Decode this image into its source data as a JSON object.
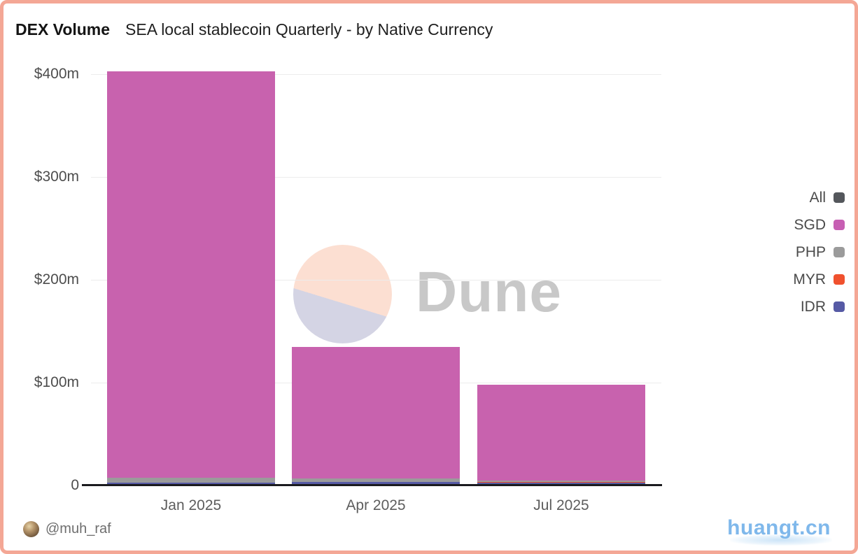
{
  "header": {
    "title": "DEX Volume",
    "subtitle": "SEA local stablecoin Quarterly - by Native Currency"
  },
  "footer": {
    "author_handle": "@muh_raf",
    "brand": "huangt.cn"
  },
  "watermark": {
    "text": "Dune",
    "circle_top_color": "#fcdfd2",
    "circle_bottom_color": "#d4d4e4"
  },
  "legend": {
    "position": "right",
    "items": [
      {
        "label": "All",
        "color": "#54575c"
      },
      {
        "label": "SGD",
        "color": "#c75fb3"
      },
      {
        "label": "PHP",
        "color": "#9b9b9b"
      },
      {
        "label": "MYR",
        "color": "#f0512e"
      },
      {
        "label": "IDR",
        "color": "#565aa5"
      }
    ]
  },
  "chart_data": {
    "type": "bar",
    "stacked": true,
    "title": "DEX Volume — SEA local stablecoin Quarterly - by Native Currency",
    "xlabel": "",
    "ylabel": "",
    "units": "$m (USD millions)",
    "categories": [
      "Jan 2025",
      "Apr 2025",
      "Jul 2025"
    ],
    "series": [
      {
        "name": "IDR",
        "color": "#565aa5",
        "values": [
          2.7,
          3.4,
          3.0
        ]
      },
      {
        "name": "MYR",
        "color": "#f0512e",
        "values": [
          0.3,
          0.3,
          0.7
        ]
      },
      {
        "name": "PHP",
        "color": "#9b9b9b",
        "values": [
          4.8,
          3.4,
          1.3
        ]
      },
      {
        "name": "SGD",
        "color": "#c862ae",
        "values": [
          395.0,
          127.9,
          93.0
        ]
      }
    ],
    "totals_approx": [
      403,
      135,
      98
    ],
    "y_ticks": [
      {
        "label": "$400m",
        "value": 400
      },
      {
        "label": "$300m",
        "value": 300
      },
      {
        "label": "$200m",
        "value": 200
      },
      {
        "label": "$100m",
        "value": 100
      },
      {
        "label": "0",
        "value": 0
      }
    ],
    "ylim": [
      0,
      409
    ],
    "grid": true,
    "legend_position": "right"
  }
}
